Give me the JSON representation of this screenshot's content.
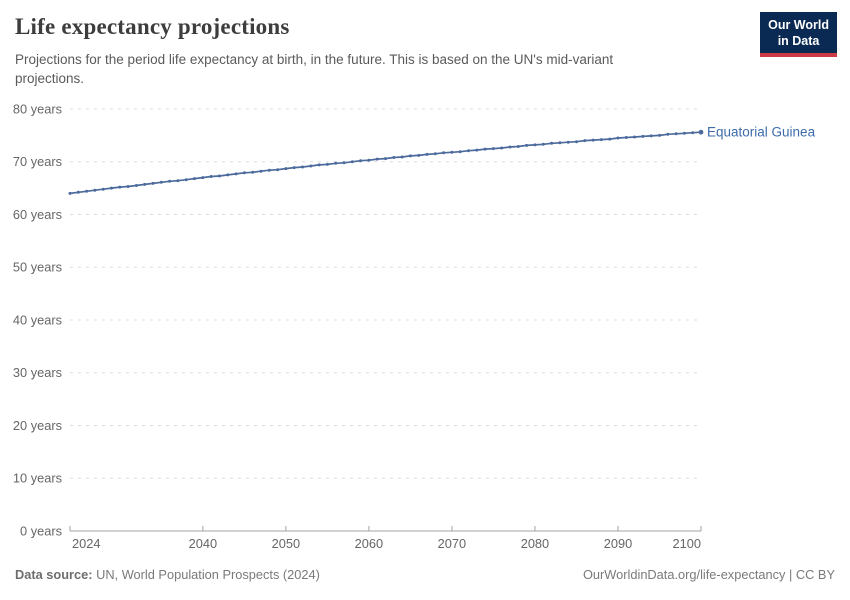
{
  "header": {
    "title": "Life expectancy projections",
    "subtitle": "Projections for the period life expectancy at birth, in the future. This is based on the UN's mid-variant projections.",
    "logo": {
      "line1": "Our World",
      "line2": "in Data",
      "bg_color": "#0a2953",
      "accent_color": "#cc3b43"
    }
  },
  "chart_data": {
    "type": "line",
    "title": "Life expectancy projections",
    "xlabel": "",
    "ylabel": "",
    "xlim": [
      2024,
      2100
    ],
    "ylim": [
      0,
      80
    ],
    "grid": "horizontal-dashed",
    "legend_position": "end-of-line-label",
    "x_ticks": [
      2024,
      2040,
      2050,
      2060,
      2070,
      2080,
      2090,
      2100
    ],
    "y_ticks": [
      {
        "value": 0,
        "label": "0 years"
      },
      {
        "value": 10,
        "label": "10 years"
      },
      {
        "value": 20,
        "label": "20 years"
      },
      {
        "value": 30,
        "label": "30 years"
      },
      {
        "value": 40,
        "label": "40 years"
      },
      {
        "value": 50,
        "label": "50 years"
      },
      {
        "value": 60,
        "label": "60 years"
      },
      {
        "value": 70,
        "label": "70 years"
      },
      {
        "value": 80,
        "label": "80 years"
      }
    ],
    "years": [
      2024,
      2025,
      2026,
      2027,
      2028,
      2029,
      2030,
      2031,
      2032,
      2033,
      2034,
      2035,
      2036,
      2037,
      2038,
      2039,
      2040,
      2041,
      2042,
      2043,
      2044,
      2045,
      2046,
      2047,
      2048,
      2049,
      2050,
      2051,
      2052,
      2053,
      2054,
      2055,
      2056,
      2057,
      2058,
      2059,
      2060,
      2061,
      2062,
      2063,
      2064,
      2065,
      2066,
      2067,
      2068,
      2069,
      2070,
      2071,
      2072,
      2073,
      2074,
      2075,
      2076,
      2077,
      2078,
      2079,
      2080,
      2081,
      2082,
      2083,
      2084,
      2085,
      2086,
      2087,
      2088,
      2089,
      2090,
      2091,
      2092,
      2093,
      2094,
      2095,
      2096,
      2097,
      2098,
      2099,
      2100
    ],
    "series": [
      {
        "name": "Equatorial Guinea",
        "color": "#4C6A9C",
        "values": [
          64.0,
          64.2,
          64.4,
          64.6,
          64.8,
          65.0,
          65.2,
          65.3,
          65.5,
          65.7,
          65.9,
          66.1,
          66.3,
          66.4,
          66.6,
          66.8,
          67.0,
          67.2,
          67.3,
          67.5,
          67.7,
          67.9,
          68.0,
          68.2,
          68.4,
          68.5,
          68.7,
          68.9,
          69.0,
          69.2,
          69.4,
          69.5,
          69.7,
          69.8,
          70.0,
          70.2,
          70.3,
          70.5,
          70.6,
          70.8,
          70.9,
          71.1,
          71.2,
          71.4,
          71.5,
          71.7,
          71.8,
          71.9,
          72.1,
          72.2,
          72.4,
          72.5,
          72.6,
          72.8,
          72.9,
          73.1,
          73.2,
          73.3,
          73.5,
          73.6,
          73.7,
          73.8,
          74.0,
          74.1,
          74.2,
          74.3,
          74.5,
          74.6,
          74.7,
          74.8,
          74.9,
          75.0,
          75.2,
          75.3,
          75.4,
          75.5,
          75.6
        ]
      }
    ],
    "unit": "years"
  },
  "footer": {
    "source_label": "Data source:",
    "source_text": "UN, World Population Prospects (2024)",
    "url": "OurWorldinData.org/life-expectancy",
    "separator": "|",
    "license": "CC BY"
  },
  "colors": {
    "line": "#4C6A9C",
    "series_label": "#3d6bab",
    "grid": "#dddddd",
    "axis": "#a3a3a3",
    "tick_text": "#666666"
  }
}
